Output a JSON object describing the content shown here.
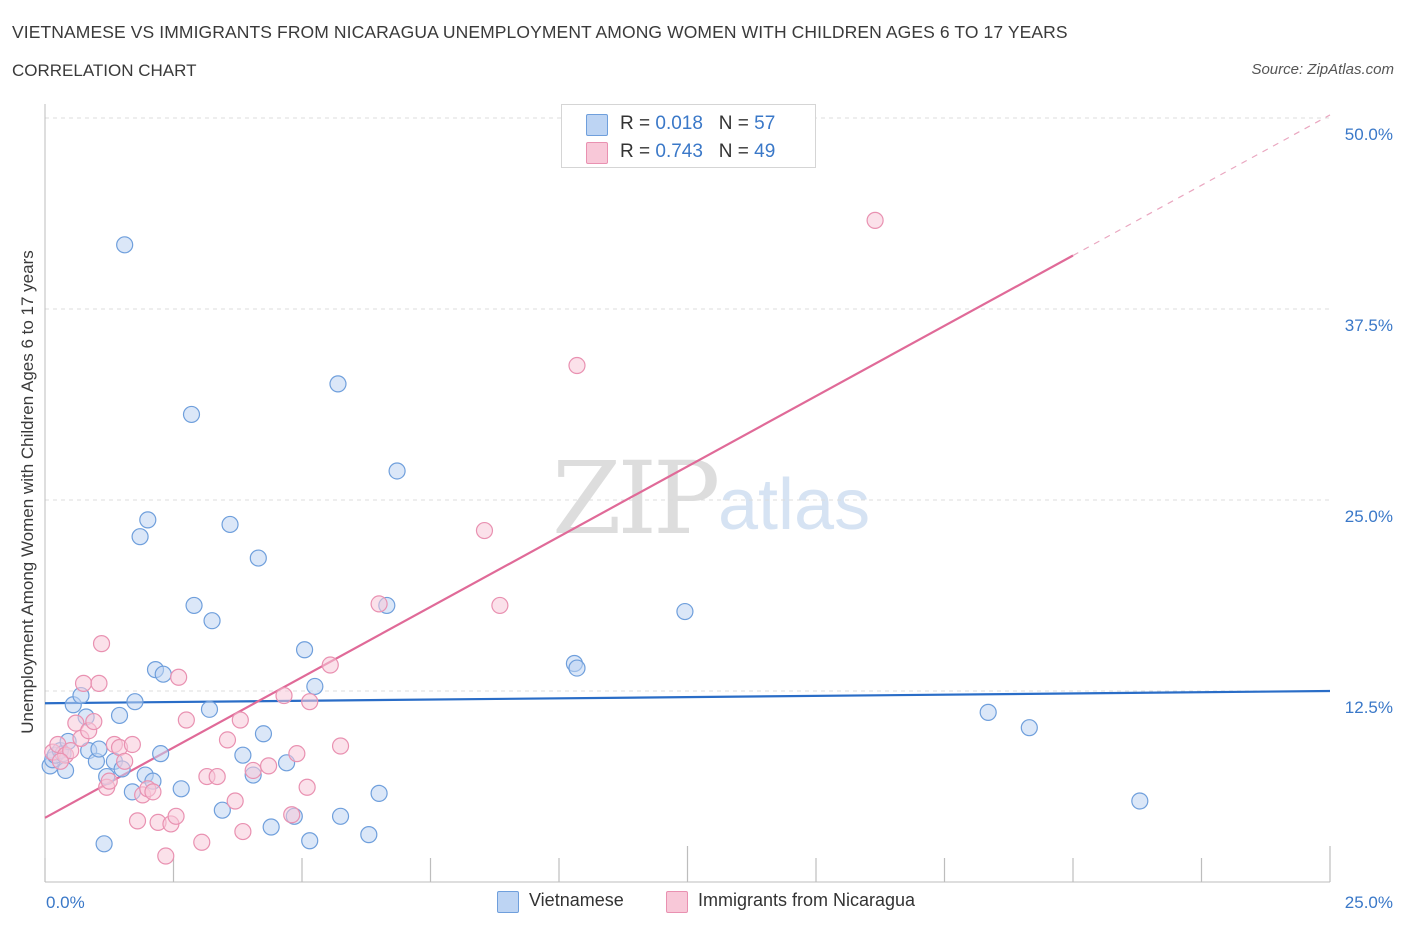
{
  "header": {
    "title": "VIETNAMESE VS IMMIGRANTS FROM NICARAGUA UNEMPLOYMENT AMONG WOMEN WITH CHILDREN AGES 6 TO 17 YEARS",
    "subtitle": "CORRELATION CHART",
    "source": "Source: ZipAtlas.com"
  },
  "watermark": {
    "zip": "ZIP",
    "atlas": "atlas"
  },
  "colors": {
    "vietnamese_fill": "#bdd4f3",
    "vietnamese_stroke": "#6f9fdc",
    "vietnamese_line": "#2a6dc7",
    "nicaragua_fill": "#f8c8d8",
    "nicaragua_stroke": "#e991b1",
    "nicaragua_line": "#e06a98",
    "tick_label": "#3a78c8",
    "grid": "#dcdcdc"
  },
  "legend": {
    "rows": [
      {
        "r_label": "R = ",
        "r_value": "0.018",
        "n_label": "N = ",
        "n_value": "57"
      },
      {
        "r_label": "R = ",
        "r_value": "0.743",
        "n_label": "N = ",
        "n_value": "49"
      }
    ]
  },
  "chart_data": {
    "type": "scatter",
    "title": "VIETNAMESE VS IMMIGRANTS FROM NICARAGUA UNEMPLOYMENT AMONG WOMEN WITH CHILDREN AGES 6 TO 17 YEARS",
    "xlabel": "",
    "ylabel": "Unemployment Among Women with Children Ages 6 to 17 years",
    "xlim": [
      0,
      25
    ],
    "ylim": [
      0,
      50
    ],
    "x_tick_labels": [
      "0.0%",
      "25.0%"
    ],
    "y_tick_labels": [
      "12.5%",
      "25.0%",
      "37.5%",
      "50.0%"
    ],
    "grid": true,
    "legend_position": "bottom-center",
    "series": [
      {
        "name": "Vietnamese",
        "r": 0.018,
        "n": 57,
        "trend": {
          "x": [
            0,
            25
          ],
          "y": [
            11.7,
            12.5
          ]
        },
        "points": [
          [
            0.1,
            7.6
          ],
          [
            0.15,
            8.0
          ],
          [
            0.2,
            8.3
          ],
          [
            0.3,
            8.6
          ],
          [
            0.35,
            8.4
          ],
          [
            0.4,
            7.3
          ],
          [
            0.45,
            9.2
          ],
          [
            0.55,
            11.6
          ],
          [
            0.7,
            12.2
          ],
          [
            0.8,
            10.8
          ],
          [
            0.85,
            8.6
          ],
          [
            1.0,
            7.9
          ],
          [
            1.05,
            8.7
          ],
          [
            1.15,
            2.5
          ],
          [
            1.2,
            6.9
          ],
          [
            1.35,
            7.9
          ],
          [
            1.45,
            10.9
          ],
          [
            1.55,
            41.7
          ],
          [
            1.7,
            5.9
          ],
          [
            1.75,
            11.8
          ],
          [
            1.85,
            22.6
          ],
          [
            1.95,
            7.0
          ],
          [
            2.0,
            23.7
          ],
          [
            2.1,
            6.6
          ],
          [
            2.15,
            13.9
          ],
          [
            2.25,
            8.4
          ],
          [
            2.3,
            13.6
          ],
          [
            2.65,
            6.1
          ],
          [
            2.85,
            30.6
          ],
          [
            2.9,
            18.1
          ],
          [
            3.2,
            11.3
          ],
          [
            3.25,
            17.1
          ],
          [
            3.45,
            4.7
          ],
          [
            3.6,
            23.4
          ],
          [
            3.85,
            8.3
          ],
          [
            4.05,
            7.0
          ],
          [
            4.15,
            21.2
          ],
          [
            4.25,
            9.7
          ],
          [
            4.4,
            3.6
          ],
          [
            4.7,
            7.8
          ],
          [
            4.85,
            4.3
          ],
          [
            5.05,
            15.2
          ],
          [
            5.15,
            2.7
          ],
          [
            5.25,
            12.8
          ],
          [
            5.7,
            32.6
          ],
          [
            5.75,
            4.3
          ],
          [
            6.3,
            3.1
          ],
          [
            6.5,
            5.8
          ],
          [
            6.65,
            18.1
          ],
          [
            6.85,
            26.9
          ],
          [
            10.3,
            14.3
          ],
          [
            10.35,
            14.0
          ],
          [
            12.45,
            17.7
          ],
          [
            18.35,
            11.1
          ],
          [
            19.15,
            10.1
          ],
          [
            21.3,
            5.3
          ],
          [
            1.5,
            7.4
          ]
        ]
      },
      {
        "name": "Immigrants from Nicaragua",
        "r": 0.743,
        "n": 49,
        "trend": {
          "x": [
            0,
            25
          ],
          "y": [
            4.2,
            50.2
          ]
        },
        "trend_solid_to_x": 20,
        "points": [
          [
            0.15,
            8.5
          ],
          [
            0.25,
            9.0
          ],
          [
            0.4,
            8.3
          ],
          [
            0.5,
            8.6
          ],
          [
            0.6,
            10.4
          ],
          [
            0.7,
            9.4
          ],
          [
            0.75,
            13.0
          ],
          [
            0.85,
            9.9
          ],
          [
            0.95,
            10.5
          ],
          [
            1.05,
            13.0
          ],
          [
            1.1,
            15.6
          ],
          [
            1.2,
            6.2
          ],
          [
            1.35,
            9.0
          ],
          [
            1.45,
            8.8
          ],
          [
            1.55,
            7.9
          ],
          [
            1.7,
            9.0
          ],
          [
            1.8,
            4.0
          ],
          [
            1.9,
            5.7
          ],
          [
            2.0,
            6.1
          ],
          [
            2.1,
            5.9
          ],
          [
            2.2,
            3.9
          ],
          [
            2.35,
            1.7
          ],
          [
            2.45,
            3.8
          ],
          [
            2.55,
            4.3
          ],
          [
            2.6,
            13.4
          ],
          [
            2.75,
            10.6
          ],
          [
            3.05,
            2.6
          ],
          [
            3.15,
            6.9
          ],
          [
            3.35,
            6.9
          ],
          [
            3.55,
            9.3
          ],
          [
            3.7,
            5.3
          ],
          [
            3.8,
            10.6
          ],
          [
            3.85,
            3.3
          ],
          [
            4.05,
            7.3
          ],
          [
            4.65,
            12.2
          ],
          [
            4.8,
            4.4
          ],
          [
            4.9,
            8.4
          ],
          [
            5.1,
            6.2
          ],
          [
            5.15,
            11.8
          ],
          [
            5.55,
            14.2
          ],
          [
            5.75,
            8.9
          ],
          [
            6.5,
            18.2
          ],
          [
            8.55,
            23.0
          ],
          [
            8.85,
            18.1
          ],
          [
            10.35,
            33.8
          ],
          [
            16.15,
            43.3
          ],
          [
            0.3,
            7.9
          ],
          [
            1.25,
            6.6
          ],
          [
            4.35,
            7.6
          ]
        ]
      }
    ]
  }
}
